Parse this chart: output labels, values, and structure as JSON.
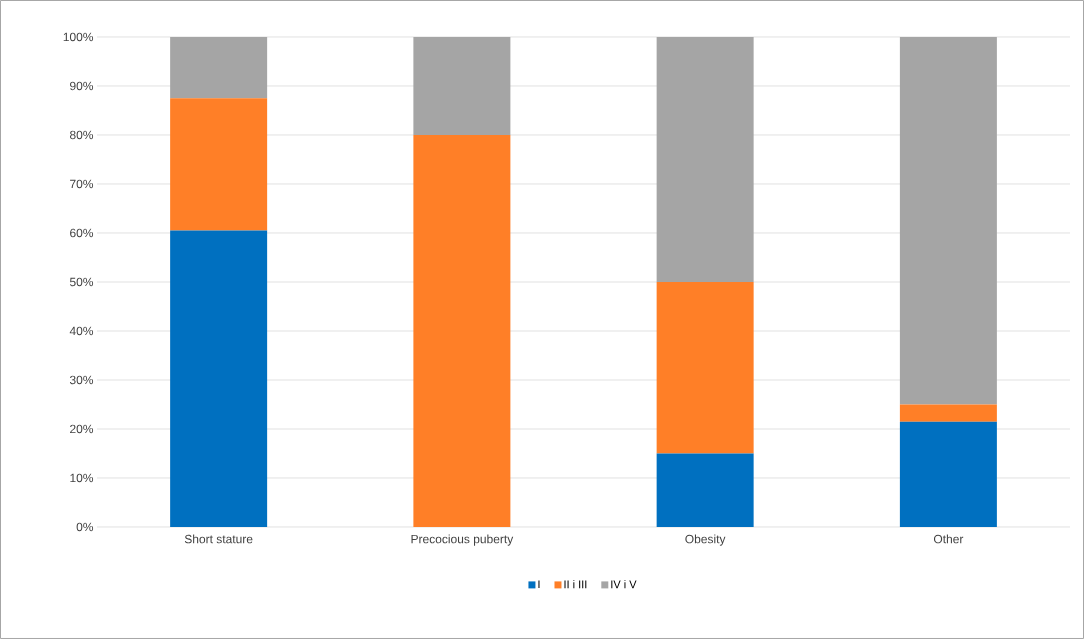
{
  "chart_data": {
    "type": "bar",
    "stacked": true,
    "categories": [
      "Short stature",
      "Precocious puberty",
      "Obesity",
      "Other"
    ],
    "series": [
      {
        "name": "I",
        "color": "#0070c0",
        "values": [
          60.5,
          0,
          15,
          21.5
        ]
      },
      {
        "name": "II i III",
        "color": "#ff7f27",
        "values": [
          27,
          80,
          35,
          3.5
        ]
      },
      {
        "name": "IV i V",
        "color": "#a5a5a5",
        "values": [
          12.5,
          20,
          50,
          75
        ]
      }
    ],
    "ylim": [
      0,
      100
    ],
    "yticks": [
      {
        "value": 0,
        "label": "0%"
      },
      {
        "value": 10,
        "label": "10%"
      },
      {
        "value": 20,
        "label": "20%"
      },
      {
        "value": 30,
        "label": "30%"
      },
      {
        "value": 40,
        "label": "40%"
      },
      {
        "value": 50,
        "label": "50%"
      },
      {
        "value": 60,
        "label": "60%"
      },
      {
        "value": 70,
        "label": "70%"
      },
      {
        "value": 80,
        "label": "80%"
      },
      {
        "value": 90,
        "label": "90%"
      },
      {
        "value": 100,
        "label": "100%"
      }
    ],
    "grid": "y",
    "legend": "bottom"
  }
}
